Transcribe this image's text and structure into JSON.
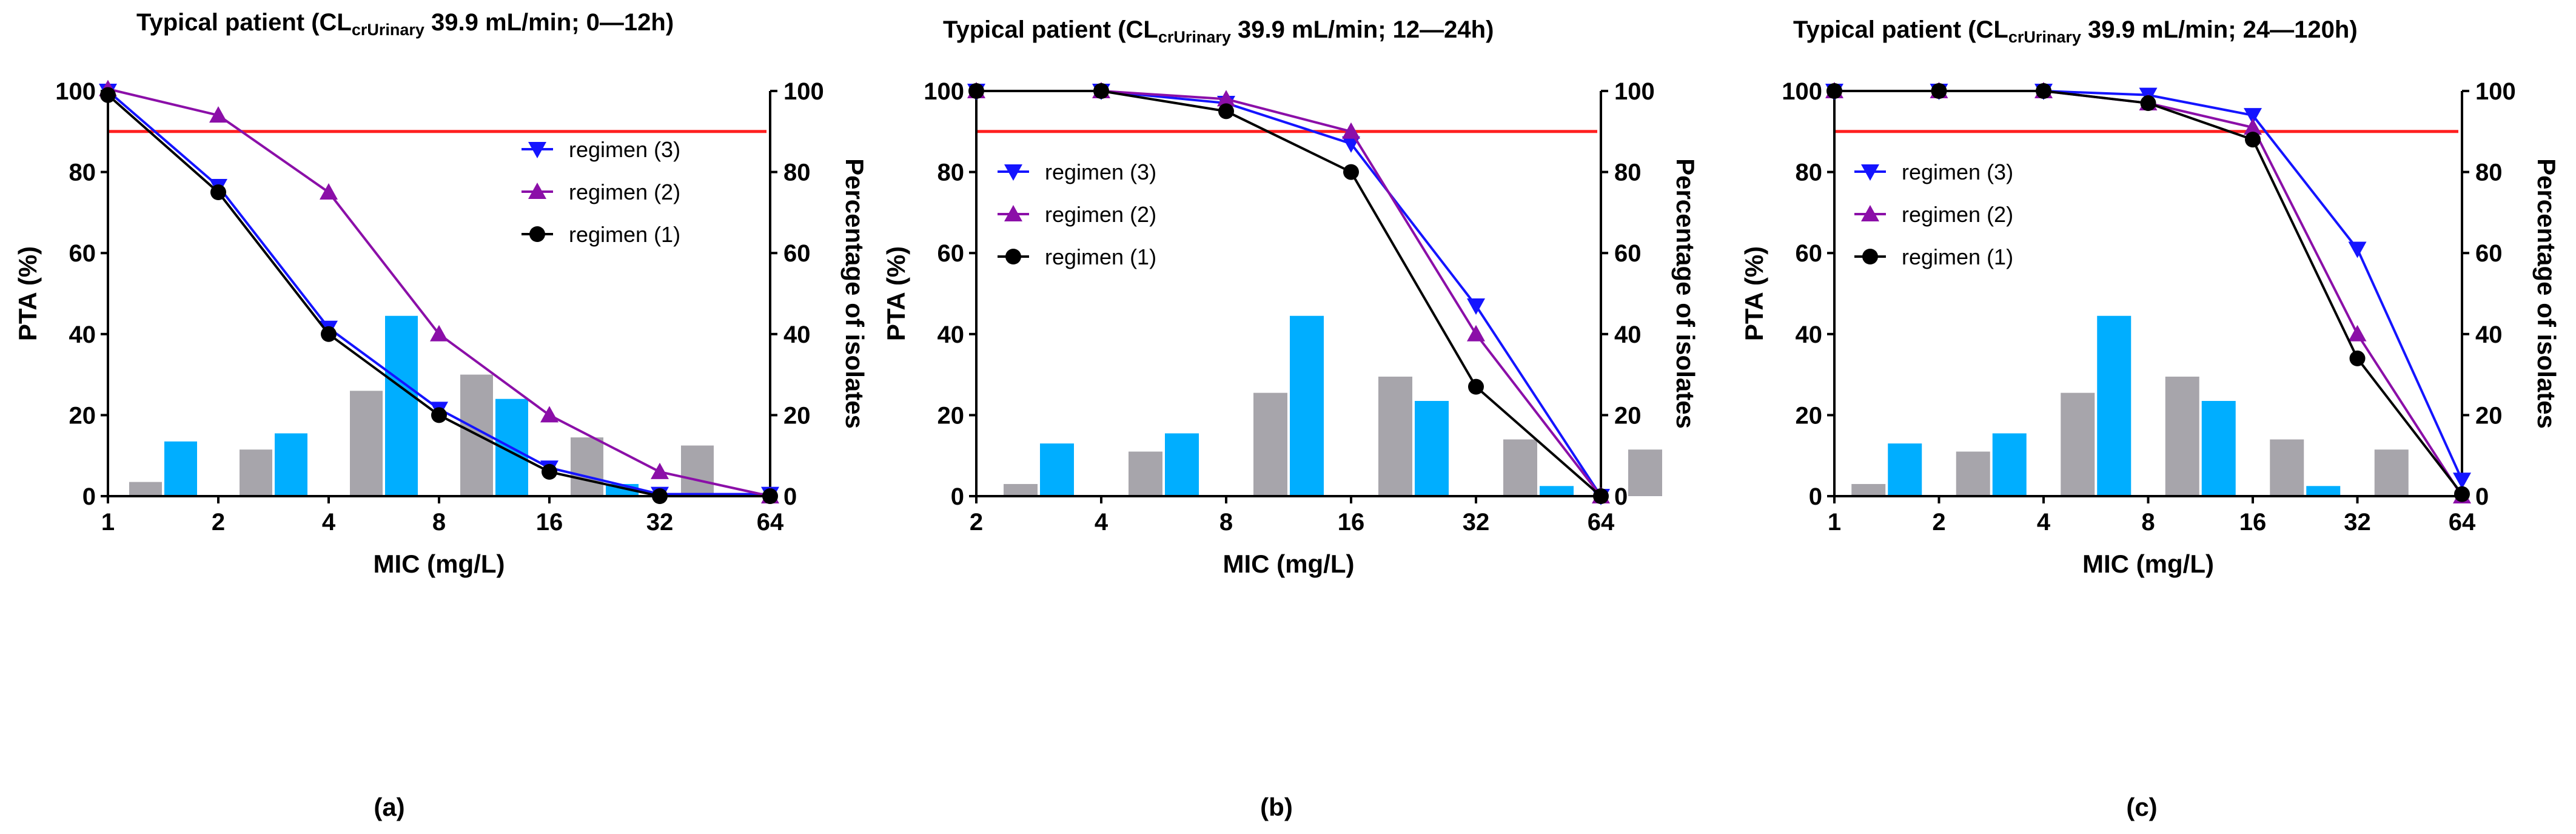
{
  "figure": {
    "panel_labels": [
      "(a)",
      "(b)",
      "(c)"
    ]
  },
  "colors": {
    "regimen_3": "#1414FF",
    "regimen_2": "#8B0FA8",
    "regimen_1": "#000000",
    "threshold": "#FF2020",
    "bar_grey": "#A7A5AB",
    "bar_blue": "#00AEFF",
    "axis": "#000000"
  },
  "chart_data": [
    {
      "type": "line",
      "title_parts": [
        "Typical patient (CL",
        "crUrinary",
        " 39.9 mL/min; 0—12h)"
      ],
      "xlabel": "MIC (mg/L)",
      "ylabel": "PTA (%)",
      "y2label": "Percentage of isolates",
      "xticks": [
        "1",
        "2",
        "4",
        "8",
        "16",
        "32",
        "64"
      ],
      "ylim": [
        0,
        100
      ],
      "yticks": [
        "0",
        "20",
        "40",
        "60",
        "80",
        "100"
      ],
      "y2lim": [
        0,
        100
      ],
      "y2ticks": [
        "0",
        "20",
        "40",
        "60",
        "80",
        "100"
      ],
      "threshold": 90,
      "legend_position": "top-right",
      "series": [
        {
          "name": "regimen (3)",
          "marker": "triangle-down",
          "color_key": "regimen_3",
          "x": [
            1,
            2,
            4,
            8,
            16,
            32,
            64
          ],
          "values": [
            100,
            76.5,
            41.5,
            21.5,
            7,
            0.5,
            0.5
          ]
        },
        {
          "name": "regimen (2)",
          "marker": "triangle-up",
          "color_key": "regimen_2",
          "x": [
            1,
            2,
            4,
            8,
            16,
            32,
            64
          ],
          "values": [
            100.5,
            94,
            75,
            40,
            20,
            6,
            0
          ]
        },
        {
          "name": "regimen (1)",
          "marker": "circle",
          "color_key": "regimen_1",
          "x": [
            1,
            2,
            4,
            8,
            16,
            32,
            64
          ],
          "values": [
            99,
            75,
            40,
            20,
            6,
            0,
            0
          ]
        }
      ],
      "bars": {
        "categories": [
          "2",
          "4",
          "8",
          "16",
          "32",
          "64"
        ],
        "series": [
          {
            "name": "grey",
            "color_key": "bar_grey",
            "values": [
              3.5,
              11.5,
              26,
              30,
              14.5,
              12.5
            ]
          },
          {
            "name": "blue",
            "color_key": "bar_blue",
            "values": [
              13.5,
              15.5,
              44.5,
              24,
              3,
              0
            ]
          }
        ]
      }
    },
    {
      "type": "line",
      "title_parts": [
        "Typical patient (CL",
        "crUrinary",
        " 39.9 mL/min; 12—24h)"
      ],
      "xlabel": "MIC (mg/L)",
      "ylabel": "PTA (%)",
      "y2label": "Percentage of isolates",
      "xticks": [
        "2",
        "4",
        "8",
        "16",
        "32",
        "64"
      ],
      "ylim": [
        0,
        100
      ],
      "yticks": [
        "0",
        "20",
        "40",
        "60",
        "80",
        "100"
      ],
      "y2lim": [
        0,
        100
      ],
      "y2ticks": [
        "0",
        "20",
        "40",
        "60",
        "80",
        "100"
      ],
      "threshold": 90,
      "legend_position": "top-left",
      "series": [
        {
          "name": "regimen (3)",
          "marker": "triangle-down",
          "color_key": "regimen_3",
          "x": [
            2,
            4,
            8,
            16,
            32,
            64
          ],
          "values": [
            100,
            100,
            97,
            87,
            47,
            0
          ]
        },
        {
          "name": "regimen (2)",
          "marker": "triangle-up",
          "color_key": "regimen_2",
          "x": [
            2,
            4,
            8,
            16,
            32,
            64
          ],
          "values": [
            100,
            100,
            98,
            90,
            40,
            0
          ]
        },
        {
          "name": "regimen (1)",
          "marker": "circle",
          "color_key": "regimen_1",
          "x": [
            2,
            4,
            8,
            16,
            32,
            64
          ],
          "values": [
            100,
            100,
            95,
            80,
            27,
            0
          ]
        }
      ],
      "bars": {
        "categories": [
          "4",
          "8",
          "16",
          "32",
          "64",
          "128"
        ],
        "series": [
          {
            "name": "grey",
            "color_key": "bar_grey",
            "values": [
              3,
              11,
              25.5,
              29.5,
              14,
              11.5
            ]
          },
          {
            "name": "blue",
            "color_key": "bar_blue",
            "values": [
              13,
              15.5,
              44.5,
              23.5,
              2.5,
              0
            ]
          }
        ]
      }
    },
    {
      "type": "line",
      "title_parts": [
        "Typical patient (CL",
        "crUrinary",
        " 39.9 mL/min; 24—120h)"
      ],
      "xlabel": "MIC (mg/L)",
      "ylabel": "PTA (%)",
      "y2label": "Percentage of isolates",
      "xticks": [
        "1",
        "2",
        "4",
        "8",
        "16",
        "32",
        "64"
      ],
      "ylim": [
        0,
        100
      ],
      "yticks": [
        "0",
        "20",
        "40",
        "60",
        "80",
        "100"
      ],
      "y2lim": [
        0,
        100
      ],
      "y2ticks": [
        "0",
        "20",
        "40",
        "60",
        "80",
        "100"
      ],
      "threshold": 90,
      "legend_position": "top-left",
      "series": [
        {
          "name": "regimen (3)",
          "marker": "triangle-down",
          "color_key": "regimen_3",
          "x": [
            1,
            2,
            4,
            8,
            16,
            32,
            64
          ],
          "values": [
            100,
            100,
            100,
            99,
            94,
            61,
            4
          ]
        },
        {
          "name": "regimen (2)",
          "marker": "triangle-up",
          "color_key": "regimen_2",
          "x": [
            1,
            2,
            4,
            8,
            16,
            32,
            64
          ],
          "values": [
            100,
            100,
            100,
            97,
            91,
            40,
            0
          ]
        },
        {
          "name": "regimen (1)",
          "marker": "circle",
          "color_key": "regimen_1",
          "x": [
            1,
            2,
            4,
            8,
            16,
            32,
            64
          ],
          "values": [
            100,
            100,
            100,
            97,
            88,
            34,
            0.5
          ]
        }
      ],
      "bars": {
        "categories": [
          "2",
          "4",
          "8",
          "16",
          "32",
          "64"
        ],
        "series": [
          {
            "name": "grey",
            "color_key": "bar_grey",
            "values": [
              3,
              11,
              25.5,
              29.5,
              14,
              11.5
            ]
          },
          {
            "name": "blue",
            "color_key": "bar_blue",
            "values": [
              13,
              15.5,
              44.5,
              23.5,
              2.5,
              0
            ]
          }
        ]
      }
    }
  ]
}
